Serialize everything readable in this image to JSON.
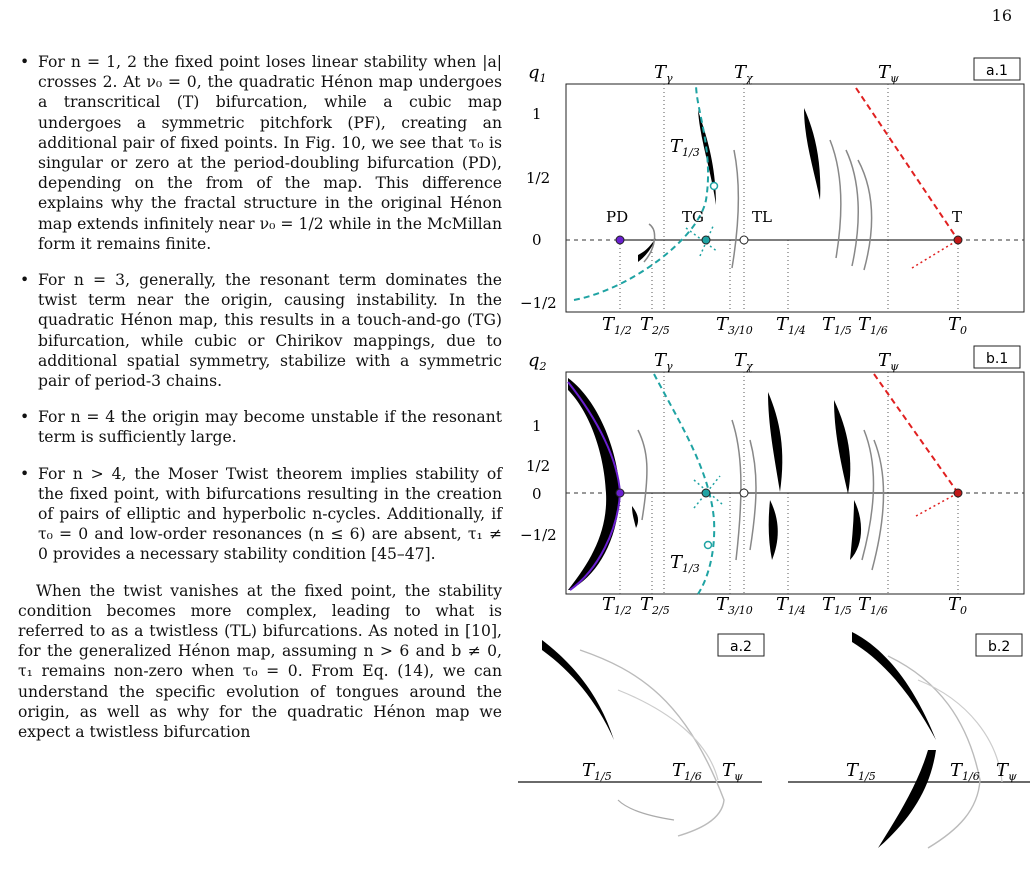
{
  "page_number": "16",
  "bullets": [
    "For n = 1, 2 the fixed point loses linear stability when |a| crosses 2. At ν₀ = 0, the quadratic Hénon map undergoes a transcritical (T) bifurcation, while a cubic map undergoes a symmetric pitchfork (PF), creating an additional pair of fixed points. In Fig. 10, we see that τ₀ is singular or zero at the period-doubling bifurcation (PD), depending on the from of the map. This difference explains why the fractal structure in the original Hénon map extends infinitely near ν₀ = 1/2 while in the McMillan form it remains finite.",
    "For n = 3, generally, the resonant term dominates the twist term near the origin, causing instability. In the quadratic Hénon map, this results in a touch-and-go (TG) bifurcation, while cubic or Chirikov mappings, due to additional spatial symmetry, stabilize with a symmetric pair of period-3 chains.",
    "For n = 4 the origin may become unstable if the resonant term is sufficiently large.",
    "For n > 4, the Moser Twist theorem implies stability of the fixed point, with bifurcations resulting in the creation of pairs of elliptic and hyperbolic n-cycles. Additionally, if τ₀ = 0 and low-order resonances (n ≤ 6) are absent, τ₁ ≠ 0 provides a necessary stability condition [45–47]."
  ],
  "paragraph": "When the twist vanishes at the fixed point, the stability condition becomes more complex, leading to what is referred to as a twistless (TL) bifurcations. As noted in [10], for the generalized Hénon map, assuming n > 6 and b ≠ 0, τ₁ remains non-zero when τ₀ = 0. From Eq. (14), we can understand the specific evolution of tongues around the origin, as well as why for the quadratic Hénon map we expect a twistless bifurcation",
  "figure": {
    "panel_a1": {
      "tag": "a.1",
      "ylabel": "q",
      "ylabel_sub": "1"
    },
    "panel_b1": {
      "tag": "b.1",
      "ylabel": "q",
      "ylabel_sub": "2"
    },
    "panel_a2": {
      "tag": "a.2"
    },
    "panel_b2": {
      "tag": "b.2"
    },
    "yticks_a1": [
      "1",
      "1/2",
      "0",
      "−1/2"
    ],
    "yticks_b1": [
      "1",
      "1/2",
      "0",
      "−1/2"
    ],
    "top_labels": [
      {
        "main": "T",
        "sub": "γ"
      },
      {
        "main": "T",
        "sub": "χ"
      },
      {
        "main": "T",
        "sub": "ψ"
      }
    ],
    "bottom_labels": [
      {
        "main": "T",
        "sub": "1/2"
      },
      {
        "main": "T",
        "sub": "2/5"
      },
      {
        "main": "T",
        "sub": "3/10"
      },
      {
        "main": "T",
        "sub": "1/4"
      },
      {
        "main": "T",
        "sub": "1/5"
      },
      {
        "main": "T",
        "sub": "1/6"
      },
      {
        "main": "T",
        "sub": "0"
      }
    ],
    "annotations_a1": {
      "pd": "PD",
      "tg": "TG",
      "tl": "TL",
      "t": "T",
      "t13": {
        "main": "T",
        "sub": "1/3"
      }
    },
    "annotations_b1": {
      "t13": {
        "main": "T",
        "sub": "1/3"
      }
    },
    "zoom_labels": [
      {
        "main": "T",
        "sub": "1/5"
      },
      {
        "main": "T",
        "sub": "1/6"
      },
      {
        "main": "T",
        "sub": "ψ"
      }
    ],
    "colors": {
      "teal": "#1fa3a3",
      "red": "#e02020",
      "purple": "#6a1fd0"
    }
  }
}
